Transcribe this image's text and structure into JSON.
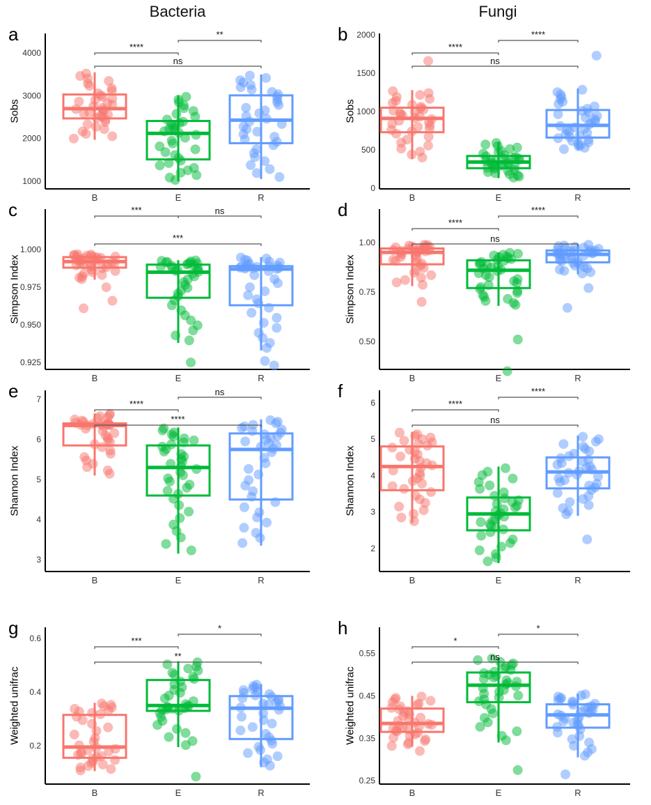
{
  "columns": [
    "Bacteria",
    "Fungi"
  ],
  "colors": {
    "B": "#F8766D",
    "E": "#00BA38",
    "R": "#619CFF"
  },
  "chart_data": [
    {
      "type": "box",
      "panel": "a",
      "column": "Bacteria",
      "ylabel": "Sobs",
      "categories": [
        "B",
        "E",
        "R"
      ],
      "ylim": [
        820,
        4460
      ],
      "yticks": [
        1000,
        2000,
        3000,
        4000
      ],
      "yticklabels": [
        "1000",
        "2000",
        "3000",
        "4000"
      ],
      "boxes": [
        {
          "q1": 2470,
          "median": 2700,
          "q3": 3030,
          "low": 1970,
          "high": 3550,
          "extra": []
        },
        {
          "q1": 1510,
          "median": 2120,
          "q3": 2410,
          "low": 1000,
          "high": 3010,
          "extra": []
        },
        {
          "q1": 1890,
          "median": 2430,
          "q3": 3010,
          "low": 1050,
          "high": 3500,
          "extra": []
        }
      ],
      "comparisons": [
        {
          "from": "B",
          "to": "E",
          "label": "****",
          "level": 2
        },
        {
          "from": "E",
          "to": "R",
          "label": "**",
          "level": 3
        },
        {
          "from": "B",
          "to": "R",
          "label": "ns",
          "level": 1
        }
      ]
    },
    {
      "type": "box",
      "panel": "b",
      "column": "Fungi",
      "ylabel": "Sobs",
      "categories": [
        "B",
        "E",
        "R"
      ],
      "ylim": [
        -10,
        2020
      ],
      "yticks": [
        0,
        500,
        1000,
        1500,
        2000
      ],
      "yticklabels": [
        "0",
        "500",
        "1000",
        "1500",
        "2000"
      ],
      "boxes": [
        {
          "q1": 730,
          "median": 910,
          "q3": 1050,
          "low": 380,
          "high": 1280,
          "extra": [
            1660
          ]
        },
        {
          "q1": 260,
          "median": 340,
          "q3": 420,
          "low": 130,
          "high": 600,
          "extra": []
        },
        {
          "q1": 660,
          "median": 820,
          "q3": 1020,
          "low": 500,
          "high": 1300,
          "extra": [
            1730
          ]
        }
      ],
      "comparisons": [
        {
          "from": "B",
          "to": "E",
          "label": "****",
          "level": 2
        },
        {
          "from": "E",
          "to": "R",
          "label": "****",
          "level": 3
        },
        {
          "from": "B",
          "to": "R",
          "label": "ns",
          "level": 1
        }
      ]
    },
    {
      "type": "box",
      "panel": "c",
      "column": "Bacteria",
      "ylabel": "Simpson Index",
      "categories": [
        "B",
        "E",
        "R"
      ],
      "ylim": [
        0.9204,
        1.0269
      ],
      "yticks": [
        0.925,
        0.95,
        0.975,
        1.0
      ],
      "yticklabels": [
        "0.925",
        "0.950",
        "0.975",
        "1.000"
      ],
      "boxes": [
        {
          "q1": 0.988,
          "median": 0.992,
          "q3": 0.995,
          "low": 0.98,
          "high": 0.997,
          "extra": [
            0.961,
            0.966,
            0.975
          ]
        },
        {
          "q1": 0.968,
          "median": 0.985,
          "q3": 0.99,
          "low": 0.938,
          "high": 0.993,
          "extra": [
            0.925
          ]
        },
        {
          "q1": 0.963,
          "median": 0.987,
          "q3": 0.989,
          "low": 0.933,
          "high": 0.995,
          "extra": [
            0.923,
            0.926
          ]
        }
      ],
      "comparisons": [
        {
          "from": "B",
          "to": "E",
          "label": "***",
          "level": 3
        },
        {
          "from": "E",
          "to": "R",
          "label": "ns",
          "level": 3
        },
        {
          "from": "B",
          "to": "R",
          "label": "***",
          "level": 1
        }
      ]
    },
    {
      "type": "box",
      "panel": "d",
      "column": "Fungi",
      "ylabel": "Simpson Index",
      "categories": [
        "B",
        "E",
        "R"
      ],
      "ylim": [
        0.359,
        1.169
      ],
      "yticks": [
        0.5,
        0.75,
        1.0
      ],
      "yticklabels": [
        "0.50",
        "0.75",
        "1.00"
      ],
      "boxes": [
        {
          "q1": 0.89,
          "median": 0.95,
          "q3": 0.97,
          "low": 0.78,
          "high": 0.99,
          "extra": [
            0.7
          ]
        },
        {
          "q1": 0.77,
          "median": 0.86,
          "q3": 0.91,
          "low": 0.68,
          "high": 0.95,
          "extra": [
            0.51,
            0.35
          ]
        },
        {
          "q1": 0.9,
          "median": 0.94,
          "q3": 0.96,
          "low": 0.84,
          "high": 0.99,
          "extra": [
            0.77,
            0.67
          ]
        }
      ],
      "comparisons": [
        {
          "from": "B",
          "to": "E",
          "label": "****",
          "level": 2
        },
        {
          "from": "E",
          "to": "R",
          "label": "****",
          "level": 3
        },
        {
          "from": "B",
          "to": "R",
          "label": "ns",
          "level": 1
        }
      ]
    },
    {
      "type": "box",
      "panel": "e",
      "column": "Bacteria",
      "ylabel": "Shannon Index",
      "categories": [
        "B",
        "E",
        "R"
      ],
      "ylim": [
        2.704,
        7.226
      ],
      "yticks": [
        3,
        4,
        5,
        6,
        7
      ],
      "yticklabels": [
        "3",
        "4",
        "5",
        "6",
        "7"
      ],
      "boxes": [
        {
          "q1": 5.85,
          "median": 6.35,
          "q3": 6.4,
          "low": 5.1,
          "high": 6.65,
          "extra": []
        },
        {
          "q1": 4.6,
          "median": 5.3,
          "q3": 5.85,
          "low": 3.15,
          "high": 6.3,
          "extra": []
        },
        {
          "q1": 4.5,
          "median": 5.75,
          "q3": 6.15,
          "low": 3.35,
          "high": 6.5,
          "extra": []
        }
      ],
      "comparisons": [
        {
          "from": "B",
          "to": "E",
          "label": "****",
          "level": 2
        },
        {
          "from": "E",
          "to": "R",
          "label": "ns",
          "level": 3
        },
        {
          "from": "B",
          "to": "R",
          "label": "****",
          "level": 1
        }
      ]
    },
    {
      "type": "box",
      "panel": "f",
      "column": "Fungi",
      "ylabel": "Shannon Index",
      "categories": [
        "B",
        "E",
        "R"
      ],
      "ylim": [
        1.37,
        6.34
      ],
      "yticks": [
        2,
        3,
        4,
        5,
        6
      ],
      "yticklabels": [
        "2",
        "3",
        "4",
        "5",
        "6"
      ],
      "boxes": [
        {
          "q1": 3.6,
          "median": 4.25,
          "q3": 4.8,
          "low": 2.7,
          "high": 5.2,
          "extra": []
        },
        {
          "q1": 2.5,
          "median": 2.95,
          "q3": 3.4,
          "low": 1.6,
          "high": 4.25,
          "extra": []
        },
        {
          "q1": 3.65,
          "median": 4.1,
          "q3": 4.5,
          "low": 2.9,
          "high": 5.1,
          "extra": [
            2.25
          ]
        }
      ],
      "comparisons": [
        {
          "from": "B",
          "to": "E",
          "label": "****",
          "level": 2
        },
        {
          "from": "E",
          "to": "R",
          "label": "****",
          "level": 3
        },
        {
          "from": "B",
          "to": "R",
          "label": "ns",
          "level": 1
        }
      ]
    },
    {
      "type": "box",
      "panel": "g",
      "column": "Bacteria",
      "ylabel": "Weighted unifrac",
      "categories": [
        "B",
        "E",
        "R"
      ],
      "ylim": [
        0.057,
        0.6416
      ],
      "yticks": [
        0.2,
        0.4,
        0.6
      ],
      "yticklabels": [
        "0.2",
        "0.4",
        "0.6"
      ],
      "boxes": [
        {
          "q1": 0.155,
          "median": 0.195,
          "q3": 0.315,
          "low": 0.105,
          "high": 0.36,
          "extra": []
        },
        {
          "q1": 0.33,
          "median": 0.35,
          "q3": 0.445,
          "low": 0.195,
          "high": 0.515,
          "extra": [
            0.085
          ]
        },
        {
          "q1": 0.225,
          "median": 0.34,
          "q3": 0.385,
          "low": 0.12,
          "high": 0.43,
          "extra": []
        }
      ],
      "comparisons": [
        {
          "from": "B",
          "to": "E",
          "label": "***",
          "level": 2
        },
        {
          "from": "E",
          "to": "R",
          "label": "*",
          "level": 3
        },
        {
          "from": "B",
          "to": "R",
          "label": "**",
          "level": 1
        }
      ]
    },
    {
      "type": "box",
      "panel": "h",
      "column": "Fungi",
      "ylabel": "Weighted unifrac",
      "categories": [
        "B",
        "E",
        "R"
      ],
      "ylim": [
        0.242,
        0.6116
      ],
      "yticks": [
        0.25,
        0.35,
        0.45,
        0.55
      ],
      "yticklabels": [
        "0.25",
        "0.35",
        "0.45",
        "0.55"
      ],
      "boxes": [
        {
          "q1": 0.365,
          "median": 0.385,
          "q3": 0.42,
          "low": 0.33,
          "high": 0.45,
          "extra": [
            0.32
          ]
        },
        {
          "q1": 0.435,
          "median": 0.475,
          "q3": 0.505,
          "low": 0.34,
          "high": 0.54,
          "extra": [
            0.275
          ]
        },
        {
          "q1": 0.375,
          "median": 0.405,
          "q3": 0.43,
          "low": 0.305,
          "high": 0.455,
          "extra": [
            0.265
          ]
        }
      ],
      "comparisons": [
        {
          "from": "B",
          "to": "E",
          "label": "*",
          "level": 2
        },
        {
          "from": "E",
          "to": "R",
          "label": "*",
          "level": 3
        },
        {
          "from": "B",
          "to": "R",
          "label": "ns",
          "level": 1
        }
      ]
    }
  ]
}
